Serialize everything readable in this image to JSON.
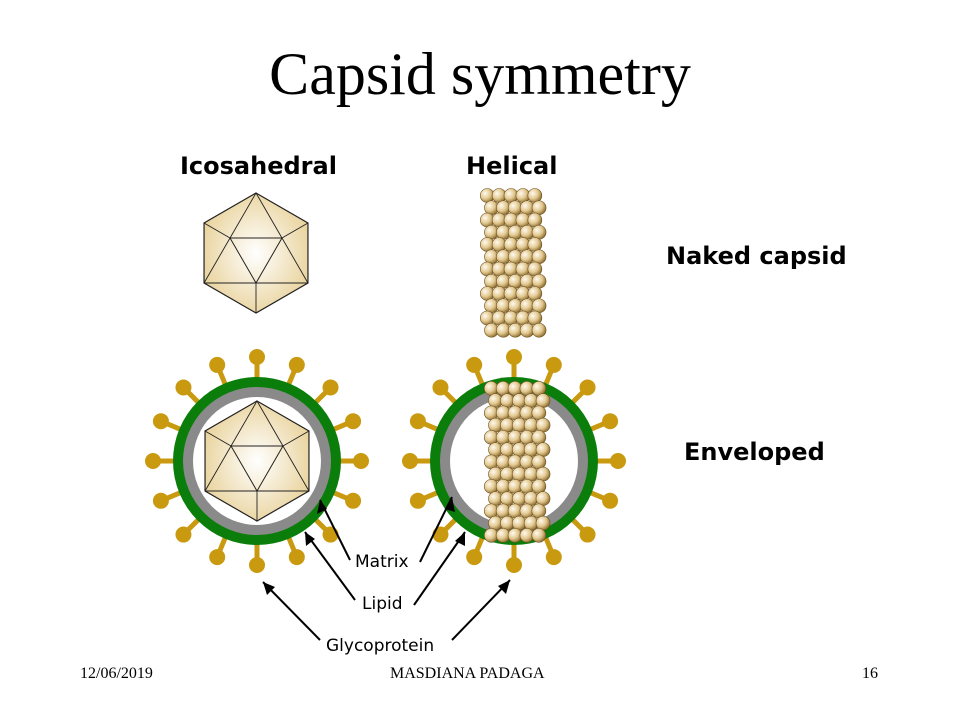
{
  "slide": {
    "title": "Capsid symmetry",
    "columns": {
      "icosahedral": "Icosahedral",
      "helical": "Helical"
    },
    "rows": {
      "naked": "Naked capsid",
      "enveloped": "Enveloped"
    },
    "callouts": {
      "matrix": "Matrix",
      "lipid": "Lipid",
      "glycoprotein": "Glycoprotein"
    },
    "footer": {
      "date": "12/06/2019",
      "author": "MASDIANA PADAGA",
      "page": "16"
    }
  },
  "colors": {
    "capsid_fill": "#f0dca8",
    "capsomere": "#d9c08c",
    "envelope_green": "#0a7d0a",
    "matrix_gray": "#8a8a8a",
    "glycoprotein": "#c99a10"
  }
}
